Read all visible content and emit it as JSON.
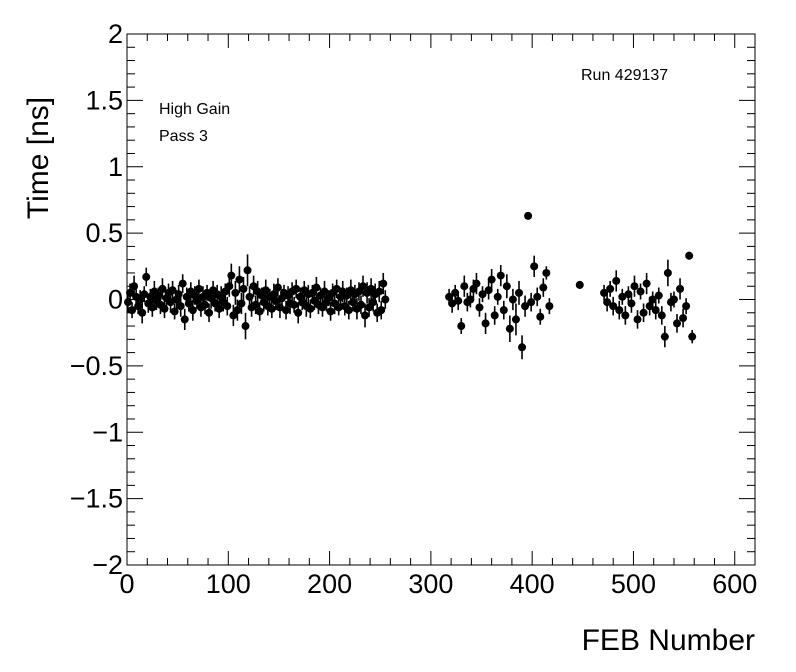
{
  "chart_data": {
    "type": "scatter",
    "title": "",
    "xlabel": "FEB Number",
    "ylabel": "Time [ns]",
    "xlim": [
      0,
      620
    ],
    "ylim": [
      -2,
      2
    ],
    "x_ticks": [
      "0",
      "100",
      "200",
      "300",
      "400",
      "500",
      "600"
    ],
    "y_ticks": [
      "2",
      "1.5",
      "1",
      "0.5",
      "0",
      "−0.5",
      "−1",
      "−1.5",
      "−2"
    ],
    "annotations": {
      "run": "Run 429137",
      "gain": "High Gain",
      "pass": "Pass 3"
    },
    "marker_color": "#000000",
    "grid": false,
    "series": [
      {
        "points": [
          [
            1,
            -0.02,
            0.08
          ],
          [
            3,
            0.05,
            0.07
          ],
          [
            5,
            -0.08,
            0.06
          ],
          [
            7,
            0.1,
            0.08
          ],
          [
            9,
            0.02,
            0.07
          ],
          [
            11,
            -0.05,
            0.06
          ],
          [
            13,
            0.0,
            0.07
          ],
          [
            15,
            -0.1,
            0.08
          ],
          [
            17,
            0.04,
            0.06
          ],
          [
            19,
            0.17,
            0.07
          ],
          [
            21,
            -0.03,
            0.07
          ],
          [
            23,
            0.02,
            0.06
          ],
          [
            25,
            -0.06,
            0.07
          ],
          [
            27,
            0.06,
            0.08
          ],
          [
            29,
            -0.01,
            0.07
          ],
          [
            31,
            0.03,
            0.06
          ],
          [
            33,
            -0.04,
            0.07
          ],
          [
            35,
            0.08,
            0.08
          ],
          [
            37,
            -0.07,
            0.07
          ],
          [
            39,
            0.01,
            0.06
          ],
          [
            41,
            0.05,
            0.07
          ],
          [
            43,
            -0.02,
            0.08
          ],
          [
            45,
            0.07,
            0.07
          ],
          [
            47,
            -0.09,
            0.06
          ],
          [
            49,
            0.0,
            0.07
          ],
          [
            51,
            0.04,
            0.07
          ],
          [
            53,
            -0.05,
            0.08
          ],
          [
            55,
            0.12,
            0.07
          ],
          [
            57,
            -0.15,
            0.08
          ],
          [
            59,
            0.02,
            0.07
          ],
          [
            61,
            -0.03,
            0.06
          ],
          [
            63,
            0.06,
            0.07
          ],
          [
            65,
            -0.08,
            0.08
          ],
          [
            67,
            0.03,
            0.07
          ],
          [
            69,
            -0.01,
            0.06
          ],
          [
            71,
            0.08,
            0.07
          ],
          [
            73,
            -0.06,
            0.07
          ],
          [
            75,
            0.02,
            0.08
          ],
          [
            77,
            -0.04,
            0.07
          ],
          [
            79,
            0.05,
            0.06
          ],
          [
            81,
            -0.1,
            0.07
          ],
          [
            83,
            0.01,
            0.08
          ],
          [
            85,
            0.07,
            0.07
          ],
          [
            87,
            -0.03,
            0.06
          ],
          [
            89,
            0.04,
            0.07
          ],
          [
            91,
            -0.07,
            0.07
          ],
          [
            93,
            0.02,
            0.08
          ],
          [
            95,
            -0.02,
            0.07
          ],
          [
            97,
            0.06,
            0.06
          ],
          [
            99,
            -0.05,
            0.07
          ],
          [
            101,
            0.1,
            0.08
          ],
          [
            103,
            0.18,
            0.09
          ],
          [
            105,
            -0.12,
            0.08
          ],
          [
            107,
            0.05,
            0.09
          ],
          [
            109,
            -0.08,
            0.08
          ],
          [
            111,
            0.15,
            0.1
          ],
          [
            113,
            -0.03,
            0.08
          ],
          [
            115,
            0.08,
            0.09
          ],
          [
            117,
            -0.2,
            0.1
          ],
          [
            119,
            0.22,
            0.12
          ],
          [
            121,
            0.02,
            0.08
          ],
          [
            123,
            -0.06,
            0.07
          ],
          [
            125,
            0.1,
            0.08
          ],
          [
            127,
            -0.04,
            0.07
          ],
          [
            129,
            0.06,
            0.08
          ],
          [
            131,
            -0.09,
            0.07
          ],
          [
            133,
            0.03,
            0.06
          ],
          [
            135,
            -0.02,
            0.07
          ],
          [
            137,
            0.07,
            0.08
          ],
          [
            139,
            -0.05,
            0.07
          ],
          [
            141,
            0.02,
            0.06
          ],
          [
            143,
            -0.07,
            0.07
          ],
          [
            145,
            0.04,
            0.08
          ],
          [
            147,
            -0.01,
            0.07
          ],
          [
            149,
            0.09,
            0.07
          ],
          [
            151,
            -0.06,
            0.08
          ],
          [
            153,
            0.01,
            0.07
          ],
          [
            155,
            0.05,
            0.06
          ],
          [
            157,
            -0.08,
            0.07
          ],
          [
            159,
            0.03,
            0.07
          ],
          [
            161,
            -0.03,
            0.08
          ],
          [
            163,
            0.06,
            0.07
          ],
          [
            165,
            -0.04,
            0.06
          ],
          [
            167,
            0.08,
            0.07
          ],
          [
            169,
            -0.1,
            0.08
          ],
          [
            171,
            0.02,
            0.07
          ],
          [
            173,
            -0.02,
            0.06
          ],
          [
            175,
            0.07,
            0.07
          ],
          [
            177,
            -0.05,
            0.08
          ],
          [
            179,
            0.04,
            0.07
          ],
          [
            181,
            -0.07,
            0.07
          ],
          [
            183,
            0.05,
            0.06
          ],
          [
            185,
            -0.01,
            0.07
          ],
          [
            187,
            0.09,
            0.08
          ],
          [
            189,
            -0.04,
            0.07
          ],
          [
            191,
            0.03,
            0.06
          ],
          [
            193,
            -0.06,
            0.07
          ],
          [
            195,
            0.06,
            0.08
          ],
          [
            197,
            -0.02,
            0.07
          ],
          [
            199,
            0.01,
            0.06
          ],
          [
            201,
            -0.09,
            0.07
          ],
          [
            203,
            0.05,
            0.07
          ],
          [
            205,
            -0.03,
            0.08
          ],
          [
            207,
            0.08,
            0.07
          ],
          [
            209,
            -0.06,
            0.06
          ],
          [
            211,
            0.02,
            0.07
          ],
          [
            213,
            0.06,
            0.08
          ],
          [
            215,
            -0.05,
            0.07
          ],
          [
            217,
            0.03,
            0.06
          ],
          [
            219,
            -0.08,
            0.07
          ],
          [
            221,
            0.07,
            0.08
          ],
          [
            223,
            -0.02,
            0.07
          ],
          [
            225,
            0.04,
            0.07
          ],
          [
            227,
            -0.07,
            0.08
          ],
          [
            229,
            0.06,
            0.07
          ],
          [
            231,
            -0.04,
            0.07
          ],
          [
            233,
            0.1,
            0.08
          ],
          [
            235,
            -0.12,
            0.09
          ],
          [
            237,
            0.05,
            0.08
          ],
          [
            239,
            -0.06,
            0.07
          ],
          [
            241,
            0.08,
            0.08
          ],
          [
            243,
            -0.02,
            0.07
          ],
          [
            245,
            0.04,
            0.08
          ],
          [
            247,
            -0.1,
            0.07
          ],
          [
            249,
            0.06,
            0.08
          ],
          [
            251,
            -0.08,
            0.07
          ],
          [
            253,
            0.12,
            0.08
          ],
          [
            255,
            0.0,
            0.07
          ],
          [
            318,
            0.02,
            0.06
          ],
          [
            321,
            -0.03,
            0.07
          ],
          [
            324,
            0.05,
            0.06
          ],
          [
            327,
            -0.01,
            0.07
          ],
          [
            330,
            -0.2,
            0.06
          ],
          [
            333,
            0.1,
            0.08
          ],
          [
            336,
            -0.02,
            0.07
          ],
          [
            339,
            0.0,
            0.06
          ],
          [
            342,
            0.08,
            0.07
          ],
          [
            345,
            0.12,
            0.08
          ],
          [
            348,
            -0.06,
            0.07
          ],
          [
            351,
            0.04,
            0.06
          ],
          [
            354,
            -0.18,
            0.08
          ],
          [
            357,
            0.07,
            0.07
          ],
          [
            360,
            0.15,
            0.08
          ],
          [
            363,
            -0.12,
            0.07
          ],
          [
            366,
            0.02,
            0.06
          ],
          [
            369,
            0.18,
            0.08
          ],
          [
            372,
            -0.08,
            0.07
          ],
          [
            375,
            0.1,
            0.09
          ],
          [
            378,
            -0.22,
            0.1
          ],
          [
            381,
            0.0,
            0.08
          ],
          [
            384,
            -0.15,
            0.12
          ],
          [
            387,
            0.05,
            0.09
          ],
          [
            390,
            -0.36,
            0.09
          ],
          [
            393,
            -0.05,
            0.08
          ],
          [
            396,
            0.63,
            0.02
          ],
          [
            399,
            -0.02,
            0.07
          ],
          [
            402,
            0.25,
            0.08
          ],
          [
            405,
            0.02,
            0.07
          ],
          [
            408,
            -0.13,
            0.06
          ],
          [
            411,
            0.09,
            0.07
          ],
          [
            414,
            0.2,
            0.05
          ],
          [
            417,
            -0.05,
            0.06
          ],
          [
            447,
            0.11,
            0.03
          ],
          [
            471,
            0.05,
            0.06
          ],
          [
            474,
            -0.02,
            0.07
          ],
          [
            477,
            0.08,
            0.06
          ],
          [
            480,
            -0.05,
            0.07
          ],
          [
            483,
            0.14,
            0.08
          ],
          [
            486,
            -0.08,
            0.07
          ],
          [
            489,
            0.02,
            0.06
          ],
          [
            492,
            -0.12,
            0.07
          ],
          [
            495,
            0.04,
            0.06
          ],
          [
            498,
            -0.03,
            0.07
          ],
          [
            501,
            0.1,
            0.08
          ],
          [
            504,
            -0.15,
            0.07
          ],
          [
            507,
            0.06,
            0.06
          ],
          [
            510,
            -0.1,
            0.07
          ],
          [
            513,
            0.12,
            0.08
          ],
          [
            516,
            -0.05,
            0.07
          ],
          [
            519,
            0.0,
            0.06
          ],
          [
            522,
            -0.08,
            0.07
          ],
          [
            525,
            0.03,
            0.06
          ],
          [
            528,
            -0.12,
            0.07
          ],
          [
            531,
            -0.28,
            0.08
          ],
          [
            534,
            0.2,
            0.1
          ],
          [
            537,
            -0.02,
            0.07
          ],
          [
            540,
            0.0,
            0.06
          ],
          [
            543,
            -0.18,
            0.07
          ],
          [
            546,
            0.08,
            0.08
          ],
          [
            549,
            -0.14,
            0.07
          ],
          [
            552,
            -0.05,
            0.06
          ],
          [
            555,
            0.33,
            0.03
          ],
          [
            558,
            -0.28,
            0.05
          ]
        ]
      }
    ]
  }
}
